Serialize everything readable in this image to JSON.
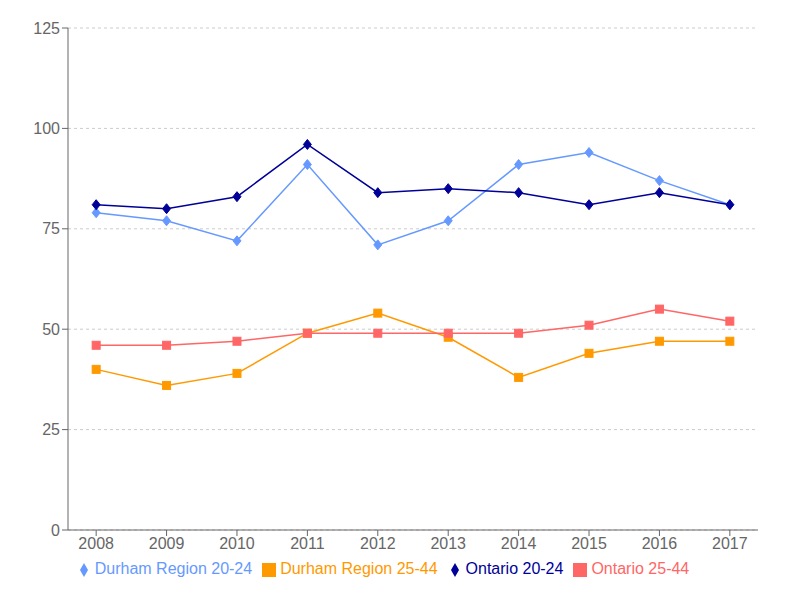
{
  "chart_data": {
    "type": "line",
    "x": [
      2008,
      2009,
      2010,
      2011,
      2012,
      2013,
      2014,
      2015,
      2016,
      2017
    ],
    "xlim": [
      2007.6,
      2017.4
    ],
    "xticks": [
      2008,
      2009,
      2010,
      2011,
      2012,
      2013,
      2014,
      2015,
      2016,
      2017
    ],
    "ylim": [
      0,
      125
    ],
    "yticks": [
      0,
      25,
      50,
      75,
      100,
      125
    ],
    "grid": true,
    "legend": "bottom",
    "series": [
      {
        "name": "Durham Region 20-24",
        "color": "#6699FF",
        "marker": "diamond",
        "values": [
          79,
          77,
          72,
          91,
          71,
          77,
          91,
          94,
          87,
          81
        ]
      },
      {
        "name": "Durham Region 25-44",
        "color": "#FF9900",
        "marker": "square",
        "values": [
          40,
          36,
          39,
          49,
          54,
          48,
          38,
          44,
          47,
          47
        ]
      },
      {
        "name": "Ontario 20-24",
        "color": "#000099",
        "marker": "diamond",
        "values": [
          81,
          80,
          83,
          96,
          84,
          85,
          84,
          81,
          84,
          81
        ]
      },
      {
        "name": "Ontario 25-44",
        "color": "#FF6666",
        "marker": "square",
        "values": [
          46,
          46,
          47,
          49,
          49,
          49,
          49,
          51,
          55,
          52
        ]
      }
    ]
  }
}
